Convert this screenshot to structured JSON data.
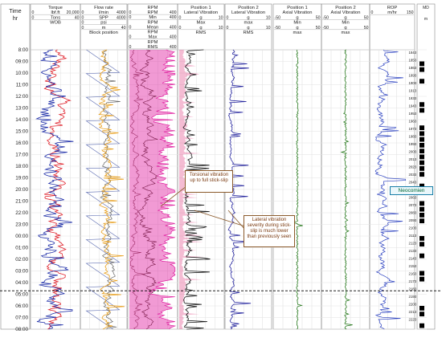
{
  "chart_data": {
    "type": "line",
    "subtype": "drilling well log",
    "time_axis": {
      "label_line1": "Time",
      "label_line2": "hr",
      "ticks": [
        "8:00",
        "09:00",
        "10:00",
        "11:00",
        "12:00",
        "13:00",
        "14:00",
        "15:00",
        "16:00",
        "17:00",
        "18:00",
        "19:00",
        "20:00",
        "21:00",
        "22:00",
        "23:00",
        "00:00",
        "01:00",
        "02:00",
        "03:00",
        "04:00",
        "05:00",
        "06:00",
        "07:00",
        "08:00"
      ],
      "range_hours": [
        0,
        24
      ]
    },
    "tracks": [
      {
        "key": "t1",
        "header": [
          {
            "left": "",
            "center": "Torque",
            "right": ""
          },
          {
            "left": "0",
            "center": "lbf.ft",
            "right": "20,000"
          },
          {
            "left": "0",
            "center": "Tons",
            "right": "40"
          },
          {
            "left": "",
            "center": "WOB",
            "right": ""
          }
        ]
      },
      {
        "key": "t2",
        "header": [
          {
            "left": "",
            "center": "Flow rate",
            "right": ""
          },
          {
            "left": "0",
            "center": "l/min",
            "right": "4000"
          },
          {
            "left": "0",
            "center": "SPP",
            "right": "4000"
          },
          {
            "left": "0",
            "center": "psi",
            "right": ""
          },
          {
            "left": "0",
            "center": "m",
            "right": "40"
          },
          {
            "left": "",
            "center": "Block position",
            "right": ""
          }
        ]
      },
      {
        "key": "t3",
        "header": [
          {
            "left": "",
            "center": "RPM",
            "right": ""
          },
          {
            "left": "0",
            "center": "RPM",
            "right": "400"
          },
          {
            "left": "0",
            "center": "Min",
            "right": "400"
          },
          {
            "left": "",
            "center": "RPM",
            "right": ""
          },
          {
            "left": "0",
            "center": "Mean",
            "right": "400"
          },
          {
            "left": "",
            "center": "RPM",
            "right": ""
          },
          {
            "left": "0",
            "center": "Max",
            "right": "400"
          },
          {
            "left": "",
            "center": "RPM",
            "right": ""
          },
          {
            "left": "0",
            "center": "RMS",
            "right": "400"
          }
        ]
      },
      {
        "key": "t4",
        "header": [
          {
            "left": "",
            "center": "Position 1",
            "right": ""
          },
          {
            "left": "",
            "center": "Lateral Vibration",
            "right": ""
          },
          {
            "left": "0",
            "center": "g",
            "right": "10"
          },
          {
            "left": "",
            "center": "Max",
            "right": ""
          },
          {
            "left": "0",
            "center": "g",
            "right": "10"
          },
          {
            "left": "",
            "center": "RMS",
            "right": ""
          }
        ]
      },
      {
        "key": "t5",
        "header": [
          {
            "left": "",
            "center": "Position 2",
            "right": ""
          },
          {
            "left": "",
            "center": "Lateral Vibration",
            "right": ""
          },
          {
            "left": "0",
            "center": "g",
            "right": "10"
          },
          {
            "left": "",
            "center": "max",
            "right": ""
          },
          {
            "left": "0",
            "center": "g",
            "right": "10"
          },
          {
            "left": "",
            "center": "RMS",
            "right": ""
          }
        ]
      },
      {
        "key": "t6",
        "header": [
          {
            "left": "",
            "center": "Position 1",
            "right": ""
          },
          {
            "left": "",
            "center": "Axial Vibration",
            "right": ""
          },
          {
            "left": "-50",
            "center": "g",
            "right": "50"
          },
          {
            "left": "",
            "center": "Min",
            "right": ""
          },
          {
            "left": "-50",
            "center": "g",
            "right": "50"
          },
          {
            "left": "",
            "center": "max",
            "right": ""
          }
        ]
      },
      {
        "key": "t7",
        "header": [
          {
            "left": "",
            "center": "Position 2",
            "right": ""
          },
          {
            "left": "",
            "center": "Axial Vibration",
            "right": ""
          },
          {
            "left": "-50",
            "center": "g",
            "right": "50"
          },
          {
            "left": "",
            "center": "Min",
            "right": ""
          },
          {
            "left": "-50",
            "center": "g",
            "right": "50"
          },
          {
            "left": "",
            "center": "max",
            "right": ""
          }
        ]
      },
      {
        "key": "t8",
        "header": [
          {
            "left": "",
            "center": "ROP",
            "right": ""
          },
          {
            "left": "0",
            "center": "m/hr",
            "right": "150"
          }
        ]
      }
    ],
    "depth_track": {
      "header": [
        "MD",
        "",
        "m"
      ],
      "labels": [
        "1843",
        "1853",
        "1863",
        "1893",
        "1903",
        "1913",
        "1933",
        "1943",
        "1953",
        "1963",
        "1973",
        "1983",
        "1993",
        "2003",
        "2013",
        "2023",
        "2033",
        "2043",
        "2053",
        "2063",
        "2073",
        "2083",
        "2093",
        "2103",
        "2113",
        "2123",
        "2133",
        "2143",
        "2153",
        "2163",
        "2173",
        "2183",
        "2193",
        "2203",
        "2213",
        "2223"
      ]
    },
    "annotations": {
      "torsional": "Torsional vibration up to full stick-slip",
      "lateral": "Lateral vibration severity during stick-slip is much lower than previously seen",
      "formation_top": "Neocomien",
      "formation_time_hr": 20.7
    },
    "series_colors": {
      "torque": "#1f2fa8",
      "wob": "#e0202a",
      "flow": "#666666",
      "spp": "#e8a020",
      "block": "#5a6ab0",
      "rpm_max": "#e020a0",
      "rpm_mean": "#7a1a4a",
      "rpm_min": "#a0306a",
      "lat_max": "#1a1a1a",
      "lat_rms": "#e04080",
      "lat2_max": "#2a2aa0",
      "lat2_rms": "#404060",
      "axial": "#2a7a20",
      "rop": "#2a40c0",
      "depth_fill": "#000000"
    },
    "grid": true
  }
}
